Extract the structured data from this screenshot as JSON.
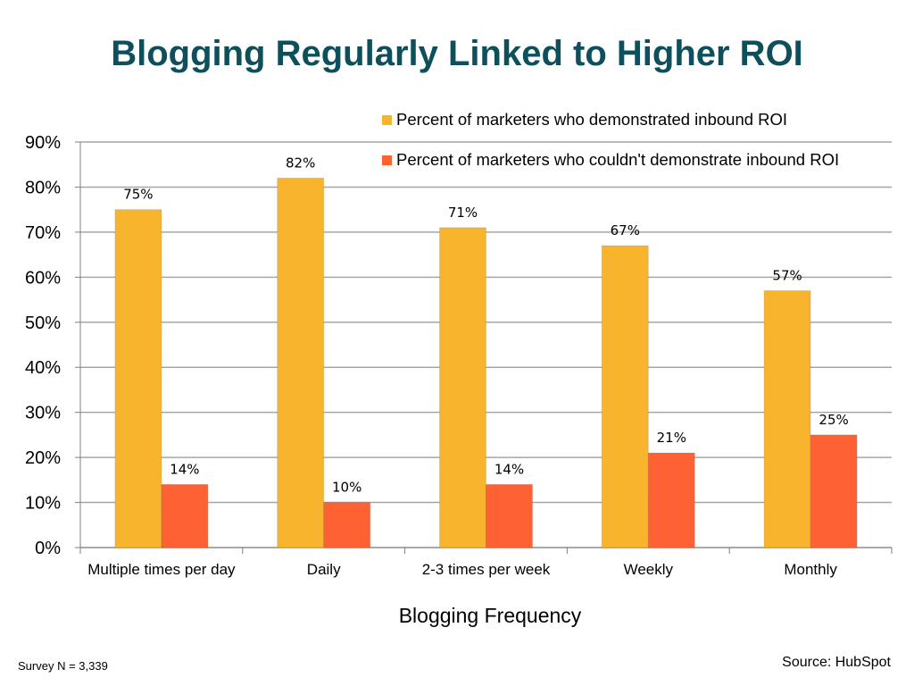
{
  "slide": {
    "title": "Blogging Regularly Linked to Higher ROI",
    "footnote_left": "Survey N = 3,339",
    "footnote_right": "Source: HubSpot"
  },
  "colors": {
    "title": "#0e4f5c",
    "gridline": "#a6a6a6",
    "axis": "#808080"
  },
  "chart_data": {
    "type": "bar",
    "title": "",
    "xlabel": "Blogging Frequency",
    "ylabel": "",
    "ylim": [
      0,
      90
    ],
    "yticks": [
      "0%",
      "10%",
      "20%",
      "30%",
      "40%",
      "50%",
      "60%",
      "70%",
      "80%",
      "90%"
    ],
    "grid": true,
    "legend_position": "top-right",
    "categories": [
      "Multiple times per day",
      "Daily",
      "2-3 times per week",
      "Weekly",
      "Monthly"
    ],
    "series": [
      {
        "name": "Percent of marketers who demonstrated inbound ROI",
        "color": "#f7b42c",
        "values": [
          75,
          82,
          71,
          67,
          57
        ],
        "labels": [
          "75%",
          "82%",
          "71%",
          "67%",
          "57%"
        ]
      },
      {
        "name": "Percent of marketers who couldn't demonstrate inbound ROI",
        "color": "#fe6233",
        "values": [
          14,
          10,
          14,
          21,
          25
        ],
        "labels": [
          "14%",
          "10%",
          "14%",
          "21%",
          "25%"
        ]
      }
    ]
  }
}
